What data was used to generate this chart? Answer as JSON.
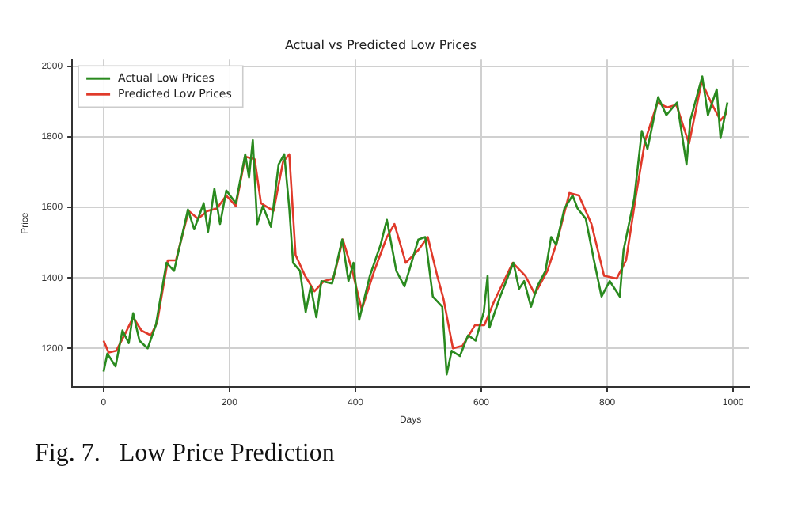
{
  "chart_data": {
    "type": "line",
    "title": "Actual vs Predicted Low Prices",
    "xlabel": "Days",
    "ylabel": "Price",
    "annotations": [
      "Fig. 7.   Low Price Prediction"
    ],
    "xlim": [
      -50,
      1025
    ],
    "ylim": [
      1090,
      2020
    ],
    "xticks": [
      0,
      200,
      400,
      600,
      800,
      1000
    ],
    "yticks": [
      1200,
      1400,
      1600,
      1800,
      2000
    ],
    "grid": true,
    "legend": "top left",
    "marker": "none",
    "line_style": "solid",
    "series": [
      {
        "name": "Actual Low Prices",
        "color": "#2a8a1f",
        "x": [
          0,
          6,
          19,
          30,
          40,
          47,
          57,
          70,
          83,
          100,
          112,
          134,
          144,
          159,
          166,
          176,
          185,
          195,
          210,
          225,
          231,
          237,
          244,
          253,
          266,
          278,
          287,
          295,
          301,
          312,
          321,
          329,
          338,
          346,
          363,
          379,
          389,
          397,
          406,
          423,
          440,
          450,
          465,
          478,
          500,
          511,
          523,
          538,
          545,
          553,
          566,
          579,
          591,
          604,
          610,
          613,
          630,
          651,
          660,
          668,
          679,
          689,
          702,
          711,
          719,
          732,
          745,
          753,
          766,
          779,
          791,
          804,
          820,
          826,
          843,
          855,
          864,
          881,
          894,
          911,
          926,
          932,
          951,
          960,
          974,
          980,
          991
        ],
        "values": [
          1134,
          1185,
          1149,
          1251,
          1215,
          1300,
          1222,
          1200,
          1266,
          1443,
          1420,
          1594,
          1538,
          1612,
          1531,
          1653,
          1553,
          1648,
          1612,
          1751,
          1685,
          1791,
          1553,
          1604,
          1545,
          1722,
          1751,
          1597,
          1443,
          1420,
          1303,
          1376,
          1288,
          1391,
          1384,
          1509,
          1391,
          1443,
          1281,
          1406,
          1494,
          1565,
          1420,
          1376,
          1509,
          1516,
          1347,
          1318,
          1126,
          1193,
          1178,
          1237,
          1222,
          1303,
          1406,
          1259,
          1347,
          1443,
          1369,
          1391,
          1318,
          1376,
          1420,
          1516,
          1494,
          1597,
          1634,
          1597,
          1568,
          1450,
          1347,
          1391,
          1347,
          1479,
          1626,
          1817,
          1766,
          1913,
          1862,
          1898,
          1722,
          1847,
          1972,
          1862,
          1935,
          1797,
          1898
        ]
      },
      {
        "name": "Predicted Low Prices",
        "color": "#e03a2a",
        "x": [
          0,
          8,
          20,
          35,
          47,
          60,
          75,
          85,
          102,
          115,
          135,
          150,
          165,
          180,
          195,
          210,
          225,
          240,
          250,
          270,
          285,
          295,
          305,
          320,
          335,
          350,
          365,
          380,
          395,
          410,
          430,
          450,
          462,
          480,
          500,
          515,
          530,
          540,
          555,
          570,
          590,
          605,
          620,
          650,
          670,
          685,
          705,
          720,
          740,
          755,
          775,
          795,
          815,
          830,
          845,
          860,
          880,
          895,
          910,
          930,
          950,
          965,
          980,
          990
        ],
        "values": [
          1222,
          1188,
          1193,
          1244,
          1288,
          1251,
          1237,
          1273,
          1450,
          1450,
          1590,
          1568,
          1590,
          1597,
          1634,
          1604,
          1744,
          1737,
          1612,
          1590,
          1729,
          1751,
          1465,
          1406,
          1362,
          1391,
          1398,
          1509,
          1420,
          1310,
          1420,
          1516,
          1553,
          1443,
          1479,
          1516,
          1406,
          1340,
          1200,
          1207,
          1266,
          1266,
          1332,
          1443,
          1406,
          1354,
          1420,
          1501,
          1641,
          1634,
          1553,
          1406,
          1398,
          1450,
          1626,
          1788,
          1898,
          1884,
          1891,
          1781,
          1957,
          1898,
          1847,
          1869
        ]
      }
    ]
  }
}
